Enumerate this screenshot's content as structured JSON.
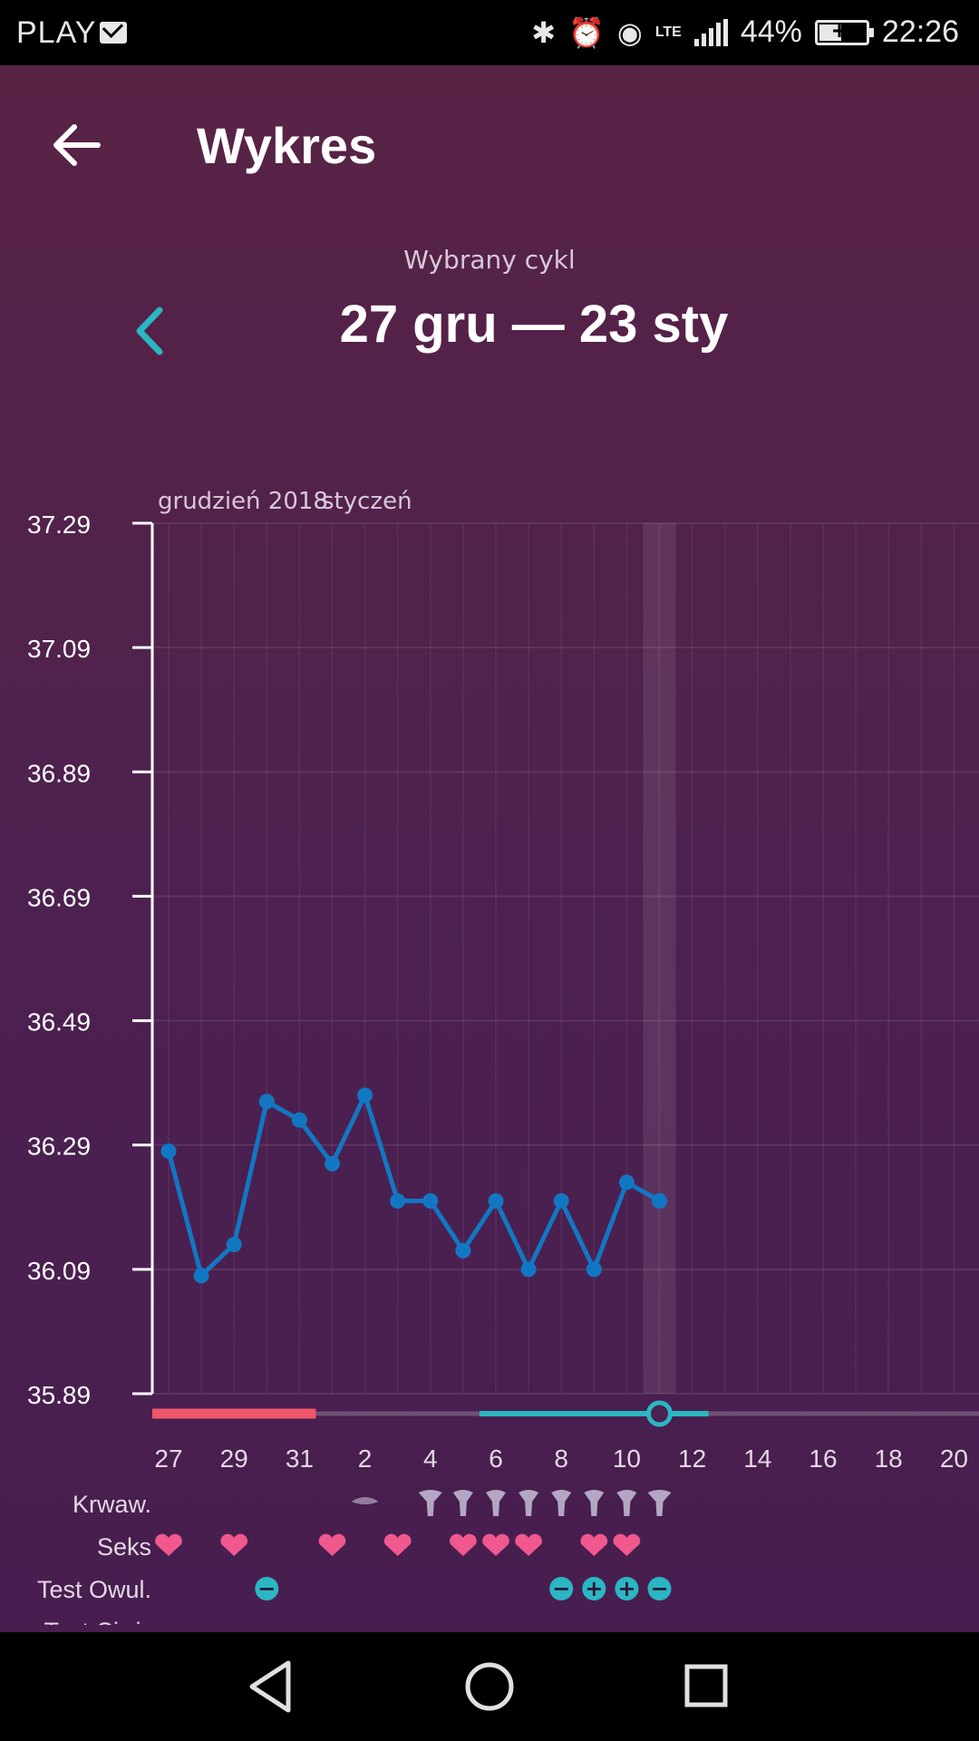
{
  "status_bar": {
    "carrier": "PLAY",
    "battery_percent": "44%",
    "time": "22:26",
    "network": "LTE",
    "icons": [
      "mail-icon",
      "bluetooth-icon",
      "alarm-icon",
      "eye-icon",
      "signal-icon",
      "battery-charging-icon"
    ]
  },
  "header": {
    "title": "Wykres",
    "back_icon": "arrow-left-icon"
  },
  "cycle": {
    "caption": "Wybrany cykl",
    "range": "27 gru — 23 sty",
    "prev_icon": "chevron-left-icon"
  },
  "colors": {
    "accent": "#2ab6c2",
    "line": "#1277c2",
    "period": "#f0566a",
    "heart": "#f0588e"
  },
  "chart_data": {
    "type": "line",
    "month_labels": [
      "grudzień 2018",
      "styczeń"
    ],
    "y_ticks": [
      "37.29",
      "37.09",
      "36.89",
      "36.69",
      "36.49",
      "36.29",
      "36.09",
      "35.89"
    ],
    "ylim": [
      35.89,
      37.29
    ],
    "x_tick_labels": [
      "27",
      "29",
      "31",
      "2",
      "4",
      "6",
      "8",
      "10",
      "12",
      "14",
      "16",
      "18",
      "20"
    ],
    "x_tick_days": [
      0,
      2,
      4,
      6,
      8,
      10,
      12,
      14,
      16,
      18,
      20,
      22,
      24
    ],
    "series": [
      {
        "days": [
          0,
          1,
          2,
          3,
          4,
          5,
          6,
          7,
          8,
          9,
          10,
          11,
          12,
          13,
          14,
          15
        ],
        "values": [
          36.28,
          36.08,
          36.13,
          36.36,
          36.33,
          36.26,
          36.37,
          36.2,
          36.2,
          36.12,
          36.2,
          36.09,
          36.2,
          36.09,
          36.23,
          36.2
        ]
      }
    ],
    "selected_day": 15,
    "period_days": [
      0,
      4
    ],
    "fertile_days": [
      10,
      16
    ],
    "grid": true,
    "rows": [
      {
        "label": "Krwaw.",
        "days": [
          6,
          8,
          9,
          10,
          11,
          12,
          13,
          14,
          15
        ],
        "levels": [
          1,
          2,
          3,
          3,
          3,
          3,
          3,
          3,
          2
        ]
      },
      {
        "label": "Seks",
        "days": [
          0,
          2,
          5,
          7,
          9,
          10,
          11,
          13,
          14
        ]
      },
      {
        "label": "Test Owul.",
        "days": [
          3,
          12,
          13,
          14,
          15
        ],
        "marks": [
          "−",
          "−",
          "+",
          "+",
          "−"
        ]
      },
      {
        "label": "Test Ciąż.",
        "days": []
      }
    ]
  }
}
